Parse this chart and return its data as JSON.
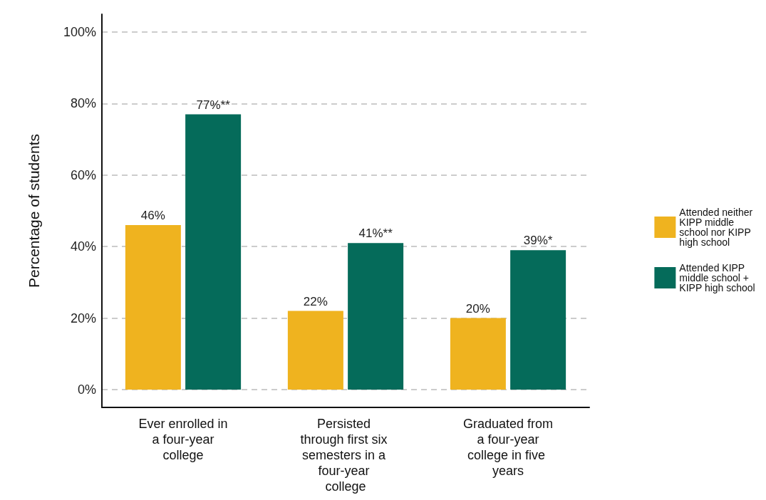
{
  "chart_data": {
    "type": "bar",
    "ylabel": "Percentage of students",
    "categories": [
      "Ever enrolled in a four-year college",
      "Persisted through first six semesters in a four-year college",
      "Graduated from a four-year college in five years"
    ],
    "series": [
      {
        "name": "Attended neither KIPP middle school nor KIPP high school",
        "color": "#efb31f",
        "values": [
          46,
          22,
          20
        ],
        "value_labels": [
          "46%",
          "22%",
          "20%"
        ]
      },
      {
        "name": "Attended KIPP middle school + KIPP high school",
        "color": "#056b5a",
        "values": [
          77,
          41,
          39
        ],
        "value_labels": [
          "77%**",
          "41%**",
          "39%*"
        ]
      }
    ],
    "ylim": [
      -5,
      105
    ],
    "yticks": [
      {
        "value": 0,
        "label": "0%"
      },
      {
        "value": 20,
        "label": "20%"
      },
      {
        "value": 40,
        "label": "40%"
      },
      {
        "value": 60,
        "label": "60%"
      },
      {
        "value": 80,
        "label": "80%"
      },
      {
        "value": 100,
        "label": "100%"
      }
    ],
    "grid": "y",
    "legend": "right"
  }
}
